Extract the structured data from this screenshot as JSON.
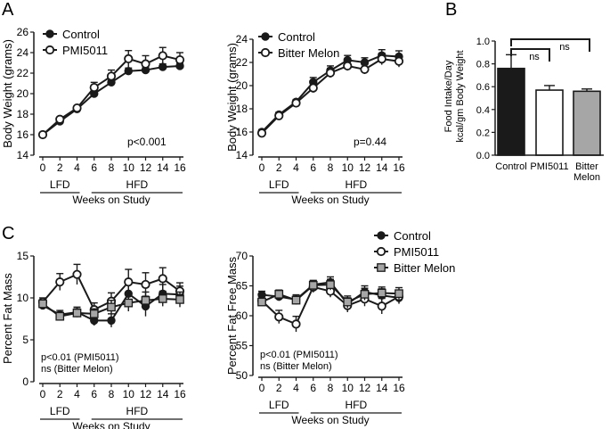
{
  "chart_data": [
    {
      "id": "A1",
      "type": "line",
      "panel_label": "A",
      "ylabel": "Body Weight (grams)",
      "xlabel": "Weeks on Study",
      "ylim": [
        14,
        26
      ],
      "yticks": [
        14,
        16,
        18,
        20,
        22,
        24,
        26
      ],
      "x": [
        0,
        2,
        4,
        6,
        8,
        10,
        12,
        14,
        16
      ],
      "xticks": [
        "0",
        "2",
        "4",
        "6",
        "8",
        "10",
        "12",
        "14",
        "16"
      ],
      "phases": [
        {
          "label": "LFD",
          "from": 0,
          "to": 4
        },
        {
          "label": "HFD",
          "from": 6,
          "to": 16
        }
      ],
      "annotation": "p<0.001",
      "series": [
        {
          "name": "Control",
          "marker": "filled-circle",
          "values": [
            16.0,
            17.3,
            18.5,
            20.0,
            21.1,
            22.2,
            22.3,
            22.6,
            22.7
          ],
          "errors": [
            0.2,
            0.2,
            0.2,
            0.3,
            0.3,
            0.3,
            0.3,
            0.3,
            0.3
          ]
        },
        {
          "name": "PMI5011",
          "marker": "open-circle",
          "values": [
            16.0,
            17.5,
            18.6,
            20.6,
            21.7,
            23.4,
            22.9,
            23.7,
            23.3
          ],
          "errors": [
            0.2,
            0.2,
            0.2,
            0.5,
            0.6,
            0.8,
            0.8,
            0.8,
            0.7
          ]
        }
      ]
    },
    {
      "id": "A2",
      "type": "line",
      "ylabel": "Body Weight (grams)",
      "xlabel": "Weeks on Study",
      "ylim": [
        14,
        24
      ],
      "yticks": [
        14,
        16,
        18,
        20,
        22,
        24
      ],
      "x": [
        0,
        2,
        4,
        6,
        8,
        10,
        12,
        14,
        16
      ],
      "xticks": [
        "0",
        "2",
        "4",
        "6",
        "8",
        "10",
        "12",
        "14",
        "16"
      ],
      "phases": [
        {
          "label": "LFD",
          "from": 0,
          "to": 4
        },
        {
          "label": "HFD",
          "from": 6,
          "to": 16
        }
      ],
      "annotation": "p=0.44",
      "series": [
        {
          "name": "Control",
          "marker": "filled-circle",
          "values": [
            16.0,
            17.5,
            18.6,
            20.3,
            21.3,
            22.2,
            22.0,
            22.6,
            22.5
          ],
          "errors": [
            0.2,
            0.2,
            0.2,
            0.4,
            0.4,
            0.4,
            0.4,
            0.5,
            0.5
          ]
        },
        {
          "name": "Bitter Melon",
          "marker": "open-circle",
          "values": [
            15.9,
            17.4,
            18.5,
            19.8,
            21.1,
            21.7,
            21.4,
            22.3,
            22.1
          ],
          "errors": [
            0.2,
            0.2,
            0.2,
            0.4,
            0.4,
            0.4,
            0.4,
            0.5,
            0.5
          ]
        }
      ]
    },
    {
      "id": "B",
      "type": "bar",
      "panel_label": "B",
      "ylabel_lines": [
        "Food Intake/Day",
        "kcal/gm Body Weight"
      ],
      "ylim": [
        0,
        1.0
      ],
      "yticks": [
        "0.0",
        "0.2",
        "0.4",
        "0.6",
        "0.8",
        "1.0"
      ],
      "categories": [
        "Control",
        "PMI5011",
        "Bitter Melon"
      ],
      "category_lines": [
        [
          "Control"
        ],
        [
          "PMI5011"
        ],
        [
          "Bitter",
          "Melon"
        ]
      ],
      "values": [
        0.76,
        0.57,
        0.56
      ],
      "errors": [
        0.12,
        0.04,
        0.02
      ],
      "colors": [
        "#1a1a1a",
        "#ffffff",
        "#a6a6a6"
      ],
      "significance": [
        {
          "from": "Control",
          "to": "PMI5011",
          "label": "ns"
        },
        {
          "from": "Control",
          "to": "Bitter Melon",
          "label": "ns"
        }
      ]
    },
    {
      "id": "C1",
      "type": "line",
      "panel_label": "C",
      "ylabel": "Percent Fat Mass",
      "xlabel": "Weeks on Study",
      "ylim": [
        0,
        15
      ],
      "yticks": [
        0,
        5,
        10,
        15
      ],
      "x": [
        0,
        2,
        4,
        6,
        8,
        10,
        12,
        14,
        16
      ],
      "xticks": [
        "0",
        "2",
        "4",
        "6",
        "8",
        "10",
        "12",
        "14",
        "16"
      ],
      "phases": [
        {
          "label": "LFD",
          "from": 0,
          "to": 4
        },
        {
          "label": "HFD",
          "from": 6,
          "to": 16
        }
      ],
      "annotation_lines": [
        "p<0.01 (PMI5011)",
        "ns (Bitter Melon)"
      ],
      "series": [
        {
          "name": "Control",
          "marker": "filled-circle",
          "values": [
            9.1,
            8.0,
            8.3,
            7.3,
            7.3,
            10.5,
            9.0,
            10.5,
            10.4
          ],
          "errors": [
            0.4,
            0.5,
            0.6,
            0.6,
            0.8,
            1.1,
            1.2,
            1.1,
            1.0
          ]
        },
        {
          "name": "PMI5011",
          "marker": "open-circle",
          "values": [
            9.5,
            11.9,
            12.8,
            8.6,
            9.6,
            11.9,
            11.6,
            12.3,
            10.8
          ],
          "errors": [
            0.5,
            1.0,
            1.2,
            0.8,
            1.0,
            1.5,
            1.4,
            1.3,
            1.0
          ]
        },
        {
          "name": "Bitter Melon",
          "marker": "gray-square",
          "values": [
            9.3,
            7.8,
            8.2,
            8.1,
            8.9,
            9.4,
            9.7,
            9.9,
            9.8
          ],
          "errors": [
            0.4,
            0.5,
            0.5,
            0.6,
            0.8,
            1.0,
            1.0,
            0.9,
            0.9
          ]
        }
      ]
    },
    {
      "id": "C2",
      "type": "line",
      "ylabel": "Percent Fat Free Mass",
      "xlabel": "Weeks on Study",
      "ylim": [
        50,
        70
      ],
      "yticks": [
        50,
        55,
        60,
        65,
        70
      ],
      "x": [
        0,
        2,
        4,
        6,
        8,
        10,
        12,
        14,
        16
      ],
      "xticks": [
        "0",
        "2",
        "4",
        "6",
        "8",
        "10",
        "12",
        "14",
        "16"
      ],
      "phases": [
        {
          "label": "LFD",
          "from": 0,
          "to": 4
        },
        {
          "label": "HFD",
          "from": 6,
          "to": 16
        }
      ],
      "annotation_lines": [
        "p<0.01 (PMI5011)",
        "ns (Bitter Melon)"
      ],
      "series": [
        {
          "name": "Control",
          "marker": "filled-circle",
          "values": [
            63.5,
            63.2,
            62.7,
            65.2,
            65.6,
            62.0,
            64.0,
            63.4,
            63.0
          ],
          "errors": [
            0.6,
            0.7,
            0.8,
            0.7,
            0.9,
            1.0,
            1.0,
            1.1,
            1.0
          ]
        },
        {
          "name": "PMI5011",
          "marker": "open-circle",
          "values": [
            62.5,
            59.8,
            58.6,
            64.8,
            64.1,
            61.7,
            62.8,
            61.6,
            63.2
          ],
          "errors": [
            0.8,
            1.1,
            1.3,
            0.9,
            1.0,
            1.1,
            1.2,
            1.3,
            1.0
          ]
        },
        {
          "name": "Bitter Melon",
          "marker": "gray-square",
          "values": [
            62.3,
            63.6,
            62.6,
            65.1,
            65.2,
            62.3,
            63.6,
            63.8,
            63.7
          ],
          "errors": [
            0.6,
            0.7,
            0.7,
            0.8,
            0.9,
            1.0,
            1.0,
            1.0,
            1.0
          ]
        }
      ]
    }
  ],
  "legends": {
    "A1": [
      "Control",
      "PMI5011"
    ],
    "A2": [
      "Control",
      "Bitter Melon"
    ],
    "C": [
      "Control",
      "PMI5011",
      "Bitter Melon"
    ]
  },
  "colors": {
    "ink": "#1a1a1a",
    "gray_square": "#a6a6a6",
    "bar_bitter_melon": "#a6a6a6"
  }
}
